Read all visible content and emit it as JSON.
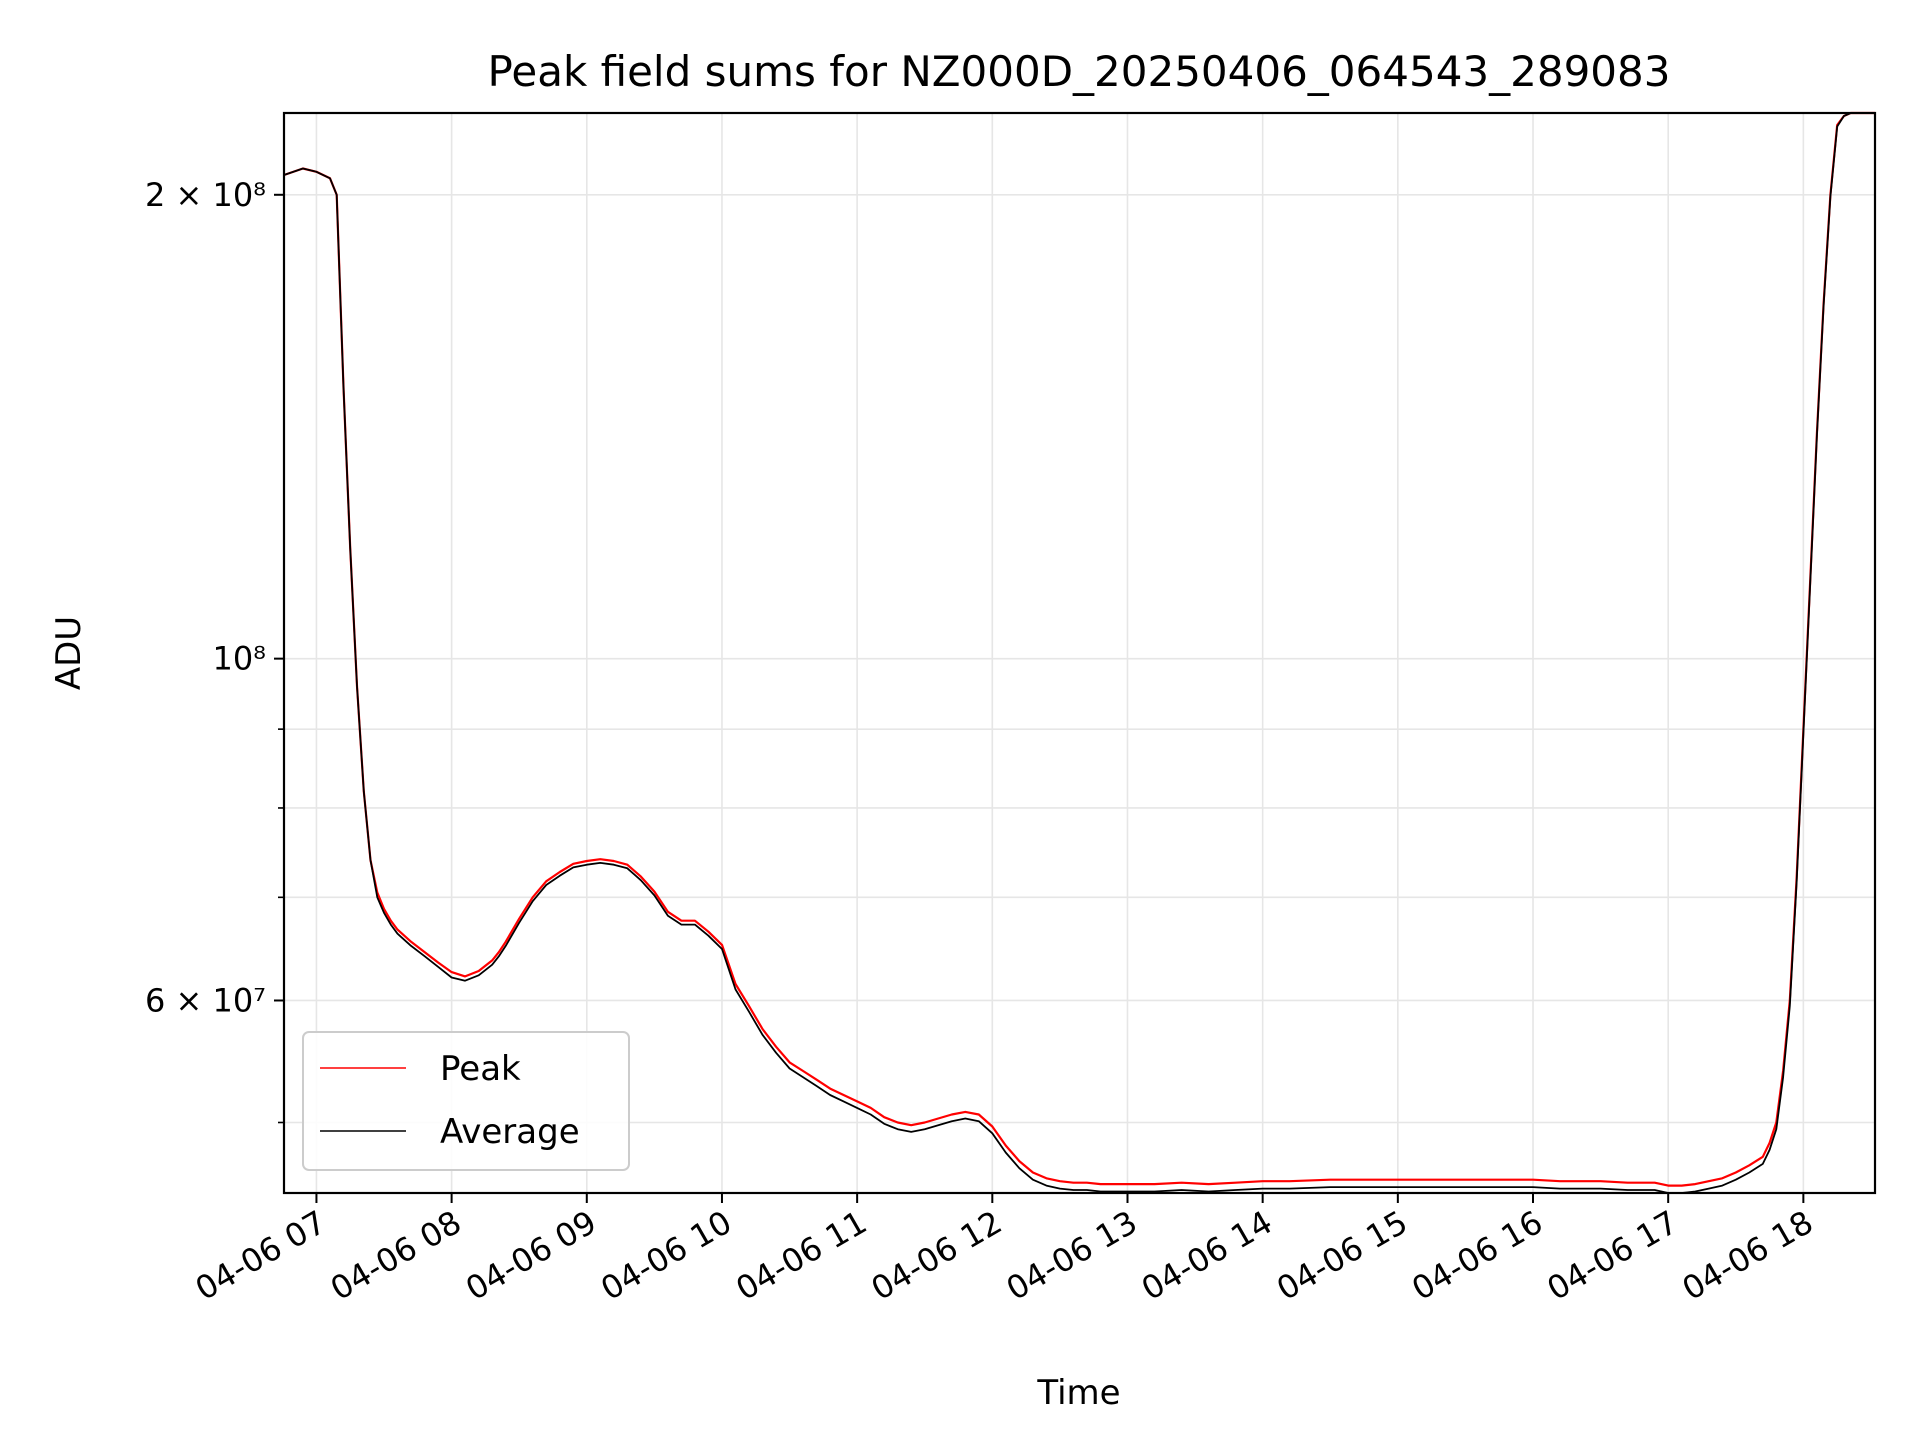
{
  "chart_data": {
    "type": "line",
    "title": "Peak field sums for NZ000D_20250406_064543_289083",
    "xlabel": "Time",
    "ylabel": "ADU",
    "yscale": "log",
    "x_unit": "hours (2025-04-06)",
    "xlim": [
      6.76,
      18.53
    ],
    "ylim": [
      45000000,
      226000000
    ],
    "grid": true,
    "legend_position": "lower-left",
    "x_ticks": [
      {
        "value": 7,
        "label": "04-06 07"
      },
      {
        "value": 8,
        "label": "04-06 08"
      },
      {
        "value": 9,
        "label": "04-06 09"
      },
      {
        "value": 10,
        "label": "04-06 10"
      },
      {
        "value": 11,
        "label": "04-06 11"
      },
      {
        "value": 12,
        "label": "04-06 12"
      },
      {
        "value": 13,
        "label": "04-06 13"
      },
      {
        "value": 14,
        "label": "04-06 14"
      },
      {
        "value": 15,
        "label": "04-06 15"
      },
      {
        "value": 16,
        "label": "04-06 16"
      },
      {
        "value": 17,
        "label": "04-06 17"
      },
      {
        "value": 18,
        "label": "04-06 18"
      }
    ],
    "y_ticks": [
      {
        "value": 60000000,
        "label": "6 × 10⁷"
      },
      {
        "value": 100000000,
        "label": "10⁸"
      },
      {
        "value": 200000000,
        "label": "2 × 10⁸"
      }
    ],
    "y_minor_ticks": [
      50000000,
      70000000,
      80000000,
      90000000
    ],
    "series": [
      {
        "name": "Peak",
        "color": "#ff0000",
        "x": [
          6.76,
          6.9,
          7.0,
          7.1,
          7.15,
          7.2,
          7.25,
          7.3,
          7.35,
          7.4,
          7.45,
          7.5,
          7.55,
          7.6,
          7.7,
          7.8,
          7.9,
          8.0,
          8.1,
          8.2,
          8.3,
          8.35,
          8.4,
          8.5,
          8.6,
          8.7,
          8.8,
          8.9,
          9.0,
          9.1,
          9.2,
          9.3,
          9.4,
          9.5,
          9.6,
          9.7,
          9.8,
          9.9,
          10.0,
          10.1,
          10.2,
          10.3,
          10.4,
          10.5,
          10.6,
          10.7,
          10.8,
          10.9,
          11.0,
          11.1,
          11.2,
          11.3,
          11.4,
          11.5,
          11.6,
          11.7,
          11.8,
          11.9,
          12.0,
          12.1,
          12.2,
          12.3,
          12.4,
          12.5,
          12.6,
          12.7,
          12.8,
          12.9,
          13.0,
          13.2,
          13.4,
          13.6,
          13.8,
          14.0,
          14.2,
          14.5,
          14.8,
          15.0,
          15.3,
          15.6,
          15.9,
          16.0,
          16.2,
          16.5,
          16.7,
          16.9,
          17.0,
          17.1,
          17.2,
          17.3,
          17.4,
          17.5,
          17.6,
          17.7,
          17.75,
          17.8,
          17.85,
          17.9,
          17.95,
          18.0,
          18.05,
          18.1,
          18.15,
          18.2,
          18.25,
          18.3,
          18.35,
          18.4,
          18.45,
          18.5,
          18.53
        ],
        "y": [
          206000000,
          208000000,
          207000000,
          205000000,
          200000000,
          150000000,
          118000000,
          96000000,
          82000000,
          74000000,
          70500000,
          68800000,
          67600000,
          66700000,
          65500000,
          64500000,
          63500000,
          62600000,
          62200000,
          62700000,
          63700000,
          64500000,
          65500000,
          67800000,
          70000000,
          71700000,
          72700000,
          73600000,
          73900000,
          74100000,
          73900000,
          73500000,
          72200000,
          70600000,
          68500000,
          67600000,
          67600000,
          66500000,
          65200000,
          61500000,
          59500000,
          57500000,
          56000000,
          54700000,
          54000000,
          53300000,
          52600000,
          52100000,
          51600000,
          51100000,
          50400000,
          50000000,
          49800000,
          50000000,
          50300000,
          50600000,
          50800000,
          50600000,
          49700000,
          48300000,
          47200000,
          46400000,
          46000000,
          45800000,
          45700000,
          45700000,
          45600000,
          45600000,
          45600000,
          45600000,
          45700000,
          45600000,
          45700000,
          45800000,
          45800000,
          45900000,
          45900000,
          45900000,
          45900000,
          45900000,
          45900000,
          45900000,
          45800000,
          45800000,
          45700000,
          45700000,
          45500000,
          45500000,
          45600000,
          45800000,
          46000000,
          46400000,
          46900000,
          47500000,
          48500000,
          50000000,
          54000000,
          60000000,
          72000000,
          90000000,
          112000000,
          140000000,
          170000000,
          200000000,
          222000000,
          225000000,
          226000000,
          226000000,
          226000000,
          226000000,
          226000000
        ]
      },
      {
        "name": "Average",
        "color": "#000000",
        "x": [
          6.76,
          6.9,
          7.0,
          7.1,
          7.15,
          7.2,
          7.25,
          7.3,
          7.35,
          7.4,
          7.45,
          7.5,
          7.55,
          7.6,
          7.7,
          7.8,
          7.9,
          8.0,
          8.1,
          8.2,
          8.3,
          8.35,
          8.4,
          8.5,
          8.6,
          8.7,
          8.8,
          8.9,
          9.0,
          9.1,
          9.2,
          9.3,
          9.4,
          9.5,
          9.6,
          9.7,
          9.8,
          9.9,
          10.0,
          10.1,
          10.2,
          10.3,
          10.4,
          10.5,
          10.6,
          10.7,
          10.8,
          10.9,
          11.0,
          11.1,
          11.2,
          11.3,
          11.4,
          11.5,
          11.6,
          11.7,
          11.8,
          11.9,
          12.0,
          12.1,
          12.2,
          12.3,
          12.4,
          12.5,
          12.6,
          12.7,
          12.8,
          12.9,
          13.0,
          13.2,
          13.4,
          13.6,
          13.8,
          14.0,
          14.2,
          14.5,
          14.8,
          15.0,
          15.3,
          15.6,
          15.9,
          16.0,
          16.2,
          16.5,
          16.7,
          16.9,
          17.0,
          17.1,
          17.2,
          17.3,
          17.4,
          17.5,
          17.6,
          17.7,
          17.75,
          17.8,
          17.85,
          17.9,
          17.95,
          18.0,
          18.05,
          18.1,
          18.15,
          18.2,
          18.25,
          18.3,
          18.35,
          18.4,
          18.45,
          18.5,
          18.53
        ],
        "y": [
          206000000,
          208000000,
          207000000,
          205000000,
          200000000,
          150000000,
          118000000,
          96000000,
          82000000,
          74000000,
          70000000,
          68400000,
          67200000,
          66300000,
          65100000,
          64100000,
          63100000,
          62100000,
          61800000,
          62300000,
          63300000,
          64100000,
          65100000,
          67400000,
          69600000,
          71300000,
          72300000,
          73200000,
          73500000,
          73700000,
          73500000,
          73100000,
          71800000,
          70200000,
          68100000,
          67200000,
          67200000,
          66100000,
          64800000,
          61000000,
          59000000,
          57000000,
          55500000,
          54200000,
          53500000,
          52800000,
          52100000,
          51600000,
          51100000,
          50600000,
          49900000,
          49500000,
          49300000,
          49500000,
          49800000,
          50100000,
          50300000,
          50100000,
          49200000,
          47800000,
          46700000,
          45900000,
          45500000,
          45300000,
          45200000,
          45200000,
          45100000,
          45100000,
          45100000,
          45100000,
          45200000,
          45100000,
          45200000,
          45300000,
          45300000,
          45400000,
          45400000,
          45400000,
          45400000,
          45400000,
          45400000,
          45400000,
          45300000,
          45300000,
          45200000,
          45200000,
          45000000,
          45000000,
          45100000,
          45300000,
          45500000,
          45900000,
          46400000,
          47000000,
          48000000,
          49500000,
          53500000,
          59500000,
          71500000,
          89500000,
          111500000,
          139500000,
          169500000,
          199500000,
          221500000,
          225000000,
          226000000,
          226000000,
          226000000,
          226000000,
          226000000
        ]
      }
    ]
  }
}
